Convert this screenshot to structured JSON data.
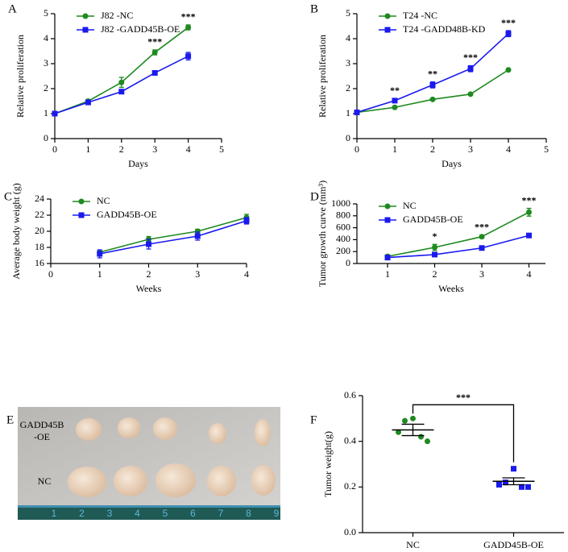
{
  "chart_data": [
    {
      "type": "line",
      "panel": "A",
      "x_label": "Days",
      "y_label": "Relative proliferation",
      "x": [
        0,
        1,
        2,
        3,
        4
      ],
      "xlim": [
        0,
        5
      ],
      "xticks": [
        0,
        1,
        2,
        3,
        4,
        5
      ],
      "ylim": [
        0,
        5
      ],
      "yticks": [
        0,
        1,
        2,
        3,
        4,
        5
      ],
      "series": [
        {
          "name": "J82 -NC",
          "color": "#1f8a1f",
          "marker": "circle",
          "values": [
            1,
            1.5,
            2.25,
            3.45,
            4.45
          ],
          "errors": [
            0.03,
            0.06,
            0.2,
            0.1,
            0.1
          ]
        },
        {
          "name": "J82 -GADD45B-OE",
          "color": "#1a1aee",
          "marker": "square",
          "values": [
            1,
            1.45,
            1.88,
            2.63,
            3.3
          ],
          "errors": [
            0.03,
            0.05,
            0.05,
            0.05,
            0.15
          ]
        }
      ],
      "significance": [
        null,
        null,
        null,
        "***",
        "***"
      ]
    },
    {
      "type": "line",
      "panel": "B",
      "x_label": "Days",
      "y_label": "Relative proliferation",
      "x": [
        0,
        1,
        2,
        3,
        4
      ],
      "xlim": [
        0,
        5
      ],
      "xticks": [
        0,
        1,
        2,
        3,
        4,
        5
      ],
      "ylim": [
        0,
        5
      ],
      "yticks": [
        0,
        1,
        2,
        3,
        4,
        5
      ],
      "series": [
        {
          "name": "T24 -NC",
          "color": "#1f8a1f",
          "marker": "circle",
          "values": [
            1.05,
            1.25,
            1.57,
            1.78,
            2.75
          ],
          "errors": [
            0.03,
            0.04,
            0.03,
            0.04,
            0.04
          ]
        },
        {
          "name": "T24 -GADD48B-KD",
          "color": "#1a1aee",
          "marker": "square",
          "values": [
            1.05,
            1.52,
            2.15,
            2.8,
            4.2
          ],
          "errors": [
            0.03,
            0.08,
            0.12,
            0.12,
            0.12
          ]
        }
      ],
      "significance": [
        null,
        "**",
        "**",
        "***",
        "***"
      ]
    },
    {
      "type": "line",
      "panel": "C",
      "x_label": "Weeks",
      "y_label": "Average body weight (g)",
      "x": [
        1,
        2,
        3,
        4
      ],
      "xlim": [
        0,
        4
      ],
      "xticks": [
        0,
        1,
        2,
        3,
        4
      ],
      "ylim": [
        16,
        24
      ],
      "yticks": [
        16,
        18,
        20,
        22,
        24
      ],
      "series": [
        {
          "name": "NC",
          "color": "#1f8a1f",
          "marker": "circle",
          "values": [
            17.4,
            19.0,
            20.0,
            21.7
          ],
          "errors": [
            0.2,
            0.35,
            0.25,
            0.4
          ]
        },
        {
          "name": "GADD45B-OE",
          "color": "#1a1aee",
          "marker": "square",
          "values": [
            17.2,
            18.4,
            19.4,
            21.3
          ],
          "errors": [
            0.5,
            0.6,
            0.5,
            0.4
          ]
        }
      ]
    },
    {
      "type": "line",
      "panel": "D",
      "x_label": "Weeks",
      "y_label": "Tumor growth curve (mm³)",
      "x": [
        1,
        2,
        3,
        4
      ],
      "xlim": [
        0.35,
        4.35
      ],
      "xticks": [
        1,
        2,
        3,
        4
      ],
      "ylim": [
        0,
        1000
      ],
      "yticks": [
        0,
        200,
        400,
        600,
        800,
        1000
      ],
      "series": [
        {
          "name": "NC",
          "color": "#1f8a1f",
          "marker": "circle",
          "values": [
            120,
            270,
            450,
            860
          ],
          "errors": [
            15,
            50,
            25,
            65
          ]
        },
        {
          "name": "GADD45B-OE",
          "color": "#1a1aee",
          "marker": "square",
          "values": [
            100,
            150,
            260,
            470
          ],
          "errors": [
            10,
            20,
            20,
            20
          ]
        }
      ],
      "significance": [
        null,
        "*",
        "***",
        "***"
      ]
    },
    {
      "type": "strip",
      "panel": "F",
      "y_label": "Tumor weight(g)",
      "categories": [
        "NC",
        "GADD45B-OE"
      ],
      "colors": [
        "#1f8a1f",
        "#1a1aee"
      ],
      "markers": [
        "circle",
        "square"
      ],
      "ylim": [
        0,
        0.6
      ],
      "yticks": [
        {
          "value": 0,
          "label": "0.0"
        },
        0.2,
        0.4,
        0.6
      ],
      "points": [
        [
          0.5,
          0.49,
          0.44,
          0.42,
          0.4
        ],
        [
          0.28,
          0.22,
          0.21,
          0.2,
          0.2
        ]
      ],
      "means": [
        0.45,
        0.225
      ],
      "sems": [
        0.025,
        0.015
      ],
      "significance": "***"
    }
  ],
  "image_panel": {
    "panel": "E",
    "top_row_label": [
      "GADD45B",
      "-OE"
    ],
    "bottom_row_label": "NC",
    "ruler_numbers": [
      "1",
      "2",
      "3",
      "4",
      "5",
      "6",
      "7",
      "8",
      "9"
    ]
  }
}
